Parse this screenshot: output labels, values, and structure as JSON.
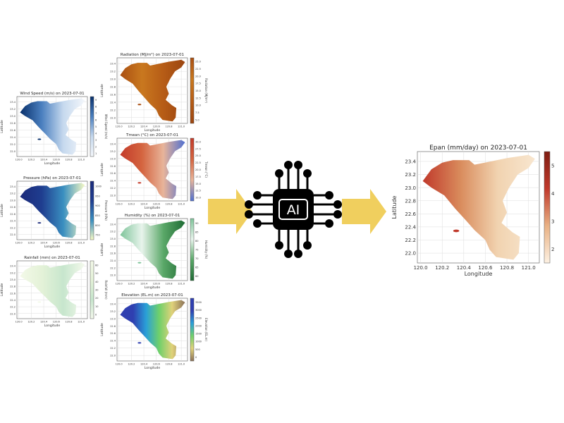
{
  "diagram": {
    "ai_label": "AI",
    "arrow_color": "#f0cf5e",
    "axes": {
      "xlabel": "Longitude",
      "ylabel": "Latitude",
      "x_ticks": [
        "120.0",
        "120.2",
        "120.4",
        "120.6",
        "120.8",
        "121.0"
      ],
      "y_ticks": [
        "22.0",
        "22.2",
        "22.4",
        "22.6",
        "22.8",
        "23.0",
        "23.2",
        "23.4"
      ]
    },
    "inputs": [
      {
        "id": "wind",
        "title": "Wind Speed (m/s) on 2023-07-01",
        "cbar_label": "Wind Speed (m/s)",
        "cbar_ticks": [
          "1",
          "2",
          "3",
          "4",
          "5",
          "6",
          "7",
          "8",
          "9"
        ],
        "colors": [
          "#08306b",
          "#4a7fbf",
          "#c6d9ee",
          "#f4f7fb"
        ]
      },
      {
        "id": "pressure",
        "title": "Pressure (hPa) on 2023-07-01",
        "cbar_label": "Pressure (hPa)",
        "cbar_ticks": [
          "750",
          "800",
          "850",
          "900",
          "950",
          "1000"
        ],
        "colors": [
          "#1b2a7a",
          "#1f3d8f",
          "#3a8fc0",
          "#f6f9c4"
        ]
      },
      {
        "id": "rainfall",
        "title": "Rainfall (mm) on 2023-07-01",
        "cbar_label": "Rainfall (mm)",
        "cbar_ticks": [
          "0",
          "10",
          "20",
          "30",
          "40",
          "50",
          "60"
        ],
        "colors": [
          "#f3f9e8",
          "#e4f2d8",
          "#c7e6cd",
          "#f4f9ec"
        ]
      },
      {
        "id": "radiation",
        "title": "Radiation (MJ/m²) on 2023-07-01",
        "cbar_label": "Radiation (MJ/m²)",
        "cbar_ticks": [
          "5.0",
          "7.5",
          "10.0",
          "12.5",
          "15.0",
          "17.5",
          "20.0",
          "22.5",
          "25.0"
        ],
        "colors": [
          "#a94f12",
          "#c9781f",
          "#b65c16",
          "#9b4510"
        ]
      },
      {
        "id": "tmean",
        "title": "Tmean (°C) on 2023-07-01",
        "cbar_label": "Tmean (°C)",
        "cbar_ticks": [
          "10.0",
          "12.5",
          "15.0",
          "17.5",
          "20.0",
          "22.5",
          "25.0",
          "27.5",
          "30.0"
        ],
        "colors": [
          "#c33b2a",
          "#d4643f",
          "#e8b49a",
          "#4f6fd0"
        ]
      },
      {
        "id": "humidity",
        "title": "Humidity (%) on 2023-07-01",
        "cbar_label": "Humidity (%)",
        "cbar_ticks": [
          "60",
          "65",
          "70",
          "75",
          "80",
          "85",
          "90"
        ],
        "colors": [
          "#7fc49a",
          "#e8f4ec",
          "#5aa868",
          "#1f6b34"
        ]
      },
      {
        "id": "elevation",
        "title": "Elevation (EL.m) on 2023-07-01",
        "cbar_label": "Elevation (EL.m)",
        "cbar_ticks": [
          "0",
          "500",
          "1000",
          "1500",
          "2000",
          "2500",
          "3000",
          "3500"
        ],
        "colors": [
          "#2f3fb0",
          "#2f3fb0",
          "#2aa0d8",
          "#6fd06a",
          "#e0d27a",
          "#8b7158"
        ]
      }
    ],
    "output": {
      "id": "epan",
      "title": "Epan (mm/day) on 2023-07-01",
      "cbar_label": "Epan (mm/day)",
      "cbar_ticks": [
        "2",
        "3",
        "4",
        "5"
      ],
      "colors": [
        "#c0392b",
        "#d98b5c",
        "#f1d3b0",
        "#f8e6cf"
      ]
    }
  }
}
